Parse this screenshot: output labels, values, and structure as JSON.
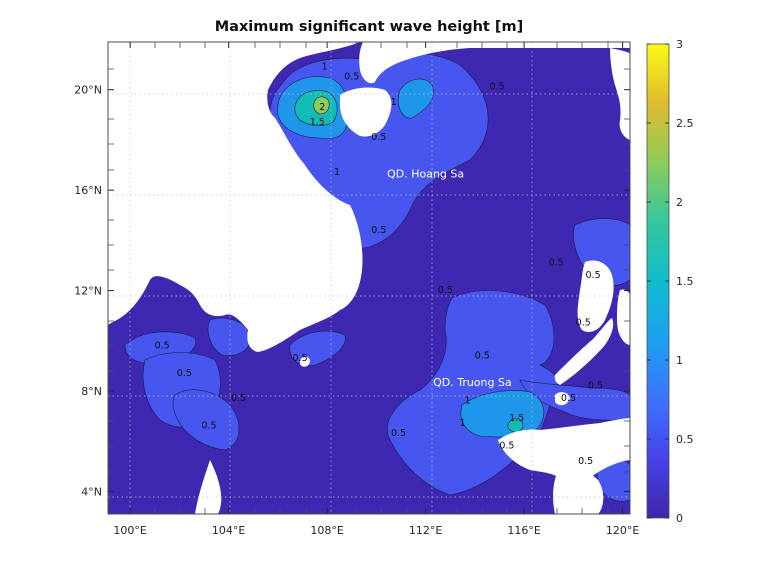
{
  "figure": {
    "title": "Maximum significant wave height [m]"
  },
  "chart_data": {
    "type": "heatmap",
    "title": "Maximum significant wave height [m]",
    "x_ticks": [
      "100°E",
      "104°E",
      "108°E",
      "112°E",
      "116°E",
      "120°E"
    ],
    "x_tick_values": [
      100,
      104,
      108,
      112,
      116,
      120
    ],
    "y_ticks": [
      "20°N",
      "16°N",
      "12°N",
      "8°N",
      "4°N"
    ],
    "y_tick_values": [
      20,
      16,
      12,
      8,
      4
    ],
    "xlim": [
      99.1,
      120.3
    ],
    "ylim": [
      3.1,
      21.9
    ],
    "grid": true,
    "colorbar": {
      "ticks": [
        "3",
        "2.5",
        "2",
        "1.5",
        "1",
        "0.5",
        "0"
      ],
      "tick_values": [
        3,
        2.5,
        2,
        1.5,
        1,
        0.5,
        0
      ],
      "range": [
        0,
        3
      ],
      "colormap": "parula"
    },
    "contour_levels": [
      0.5,
      1,
      1.5,
      2
    ],
    "contour_labels": [
      {
        "text": "1",
        "lon": 107.9,
        "lat": 20.8
      },
      {
        "text": "0.5",
        "lon": 109.0,
        "lat": 20.4
      },
      {
        "text": "2",
        "lon": 107.8,
        "lat": 19.2
      },
      {
        "text": "1.5",
        "lon": 107.6,
        "lat": 18.6
      },
      {
        "text": "1",
        "lon": 110.7,
        "lat": 19.4
      },
      {
        "text": "0.5",
        "lon": 114.9,
        "lat": 20.0
      },
      {
        "text": "0.5",
        "lon": 110.1,
        "lat": 18.0
      },
      {
        "text": "1",
        "lon": 108.4,
        "lat": 16.6
      },
      {
        "text": "0.5",
        "lon": 110.1,
        "lat": 14.3
      },
      {
        "text": "0.5",
        "lon": 117.3,
        "lat": 13.0
      },
      {
        "text": "0.5",
        "lon": 118.8,
        "lat": 12.5
      },
      {
        "text": "0.5",
        "lon": 112.8,
        "lat": 11.9
      },
      {
        "text": "0.5",
        "lon": 118.4,
        "lat": 10.6
      },
      {
        "text": "0.5",
        "lon": 101.3,
        "lat": 9.7
      },
      {
        "text": "0.5",
        "lon": 102.2,
        "lat": 8.6
      },
      {
        "text": "0.5",
        "lon": 106.9,
        "lat": 9.2
      },
      {
        "text": "0.5",
        "lon": 114.3,
        "lat": 9.3
      },
      {
        "text": "0.5",
        "lon": 118.9,
        "lat": 8.1
      },
      {
        "text": "0.5",
        "lon": 104.4,
        "lat": 7.6
      },
      {
        "text": "0.5",
        "lon": 103.2,
        "lat": 6.5
      },
      {
        "text": "1",
        "lon": 113.7,
        "lat": 7.5
      },
      {
        "text": "1",
        "lon": 113.5,
        "lat": 6.6
      },
      {
        "text": "1.5",
        "lon": 115.7,
        "lat": 6.8
      },
      {
        "text": "0.5",
        "lon": 110.9,
        "lat": 6.2
      },
      {
        "text": "0.5",
        "lon": 117.8,
        "lat": 7.6
      },
      {
        "text": "0.5",
        "lon": 115.3,
        "lat": 5.7
      },
      {
        "text": "0.5",
        "lon": 118.5,
        "lat": 5.1
      }
    ],
    "annotations": [
      {
        "text": "QD. Hoang Sa",
        "lon": 112.0,
        "lat": 16.5
      },
      {
        "text": "QD. Truong Sa",
        "lon": 113.9,
        "lat": 8.2
      }
    ]
  }
}
